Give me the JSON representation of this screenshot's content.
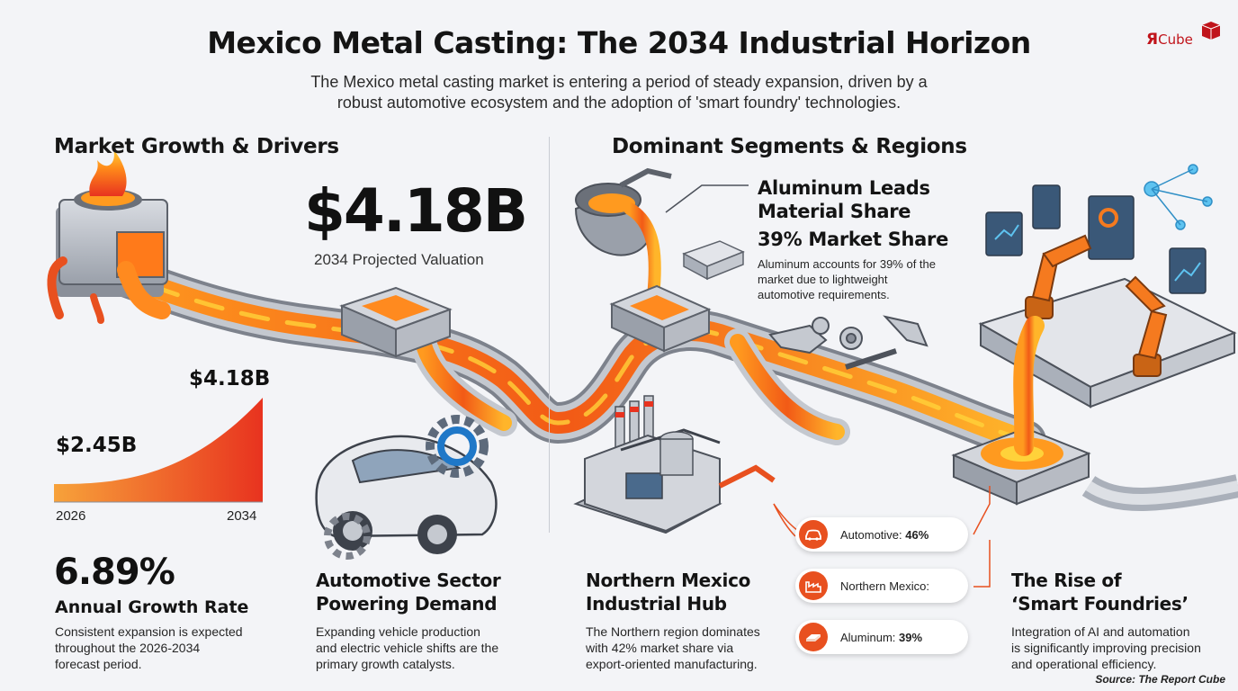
{
  "header": {
    "title": "Mexico Metal Casting: The 2034 Industrial Horizon",
    "subtitle_line1": "The Mexico metal casting market is entering a period of steady expansion, driven by a",
    "subtitle_line2": "robust automotive ecosystem and the adoption of 'smart foundry' technologies."
  },
  "logo": {
    "mark": "Я",
    "text": "Cube"
  },
  "left_section": {
    "heading": "Market Growth & Drivers",
    "valuation": "$4.18B",
    "valuation_caption": "2034 Projected Valuation",
    "growth_rate": "6.89%",
    "growth_label": "Annual Growth Rate",
    "growth_desc_1": "Consistent expansion is expected",
    "growth_desc_2": "throughout the 2026-2034",
    "growth_desc_3": "forecast period.",
    "auto_head_1": "Automotive Sector",
    "auto_head_2": "Powering Demand",
    "auto_desc_1": "Expanding vehicle production",
    "auto_desc_2": "and electric vehicle shifts are the",
    "auto_desc_3": "primary growth catalysts."
  },
  "chart_data": {
    "type": "area",
    "x": [
      "2026",
      "2034"
    ],
    "values": [
      2.45,
      4.18
    ],
    "value_labels": [
      "$2.45B",
      "$4.18B"
    ],
    "title": "",
    "xlabel": "",
    "ylabel": "",
    "grid": false,
    "colors": [
      "#f7a23a",
      "#e8331f"
    ]
  },
  "right_section": {
    "heading": "Dominant Segments & Regions",
    "al_head_1": "Aluminum Leads",
    "al_head_2": "Material Share",
    "al_share": "39% Market Share",
    "al_desc_1": "Aluminum accounts for 39% of the",
    "al_desc_2": "market due to lightweight",
    "al_desc_3": "automotive requirements.",
    "north_head_1": "Northern Mexico",
    "north_head_2": "Industrial Hub",
    "north_desc_1": "The Northern region dominates",
    "north_desc_2": "with 42% market share via",
    "north_desc_3": "export-oriented manufacturing.",
    "smart_head_1": "The Rise of",
    "smart_head_2": "‘Smart Foundries’",
    "smart_desc_1": "Integration of AI and automation",
    "smart_desc_2": "is significantly improving precision",
    "smart_desc_3": "and operational efficiency."
  },
  "pills": [
    {
      "label": "Automotive:",
      "value": "46%",
      "icon": "car-icon"
    },
    {
      "label": "Northern Mexico:",
      "value": "",
      "icon": "factory-icon"
    },
    {
      "label": "Aluminum:",
      "value": "39%",
      "icon": "ingot-icon"
    }
  ],
  "source": "Source: The Report Cube",
  "colors": {
    "molten": "#f57a1f",
    "molten_hot": "#ffcf3a",
    "accent": "#e8501f",
    "brand": "#c0141b"
  }
}
